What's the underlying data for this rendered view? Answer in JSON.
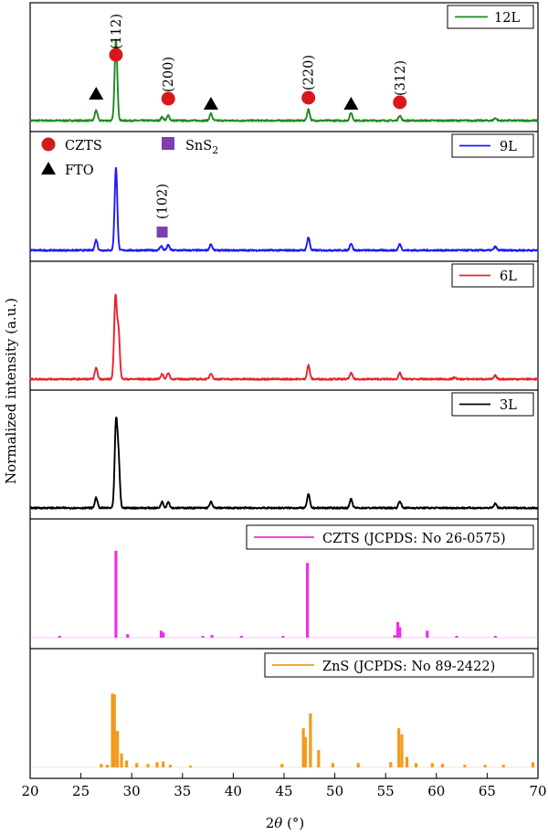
{
  "chart_data": {
    "type": "line",
    "xlabel": "2θ (°)",
    "ylabel": "Normalized intensity (a.u.)",
    "xlim": [
      20,
      70
    ],
    "xticks": [
      20,
      25,
      30,
      35,
      40,
      45,
      50,
      55,
      60,
      65,
      70
    ],
    "marker_legend": [
      {
        "label": "CZTS",
        "marker": "circle",
        "color": "#d7191c"
      },
      {
        "label": "FTO",
        "marker": "triangle",
        "color": "#000000"
      },
      {
        "label": "SnS2",
        "marker": "square",
        "color": "#7b3fb0"
      }
    ],
    "panels": [
      {
        "name": "12L",
        "type": "line",
        "color": "#1f8a1f",
        "baseline": 0.08,
        "peaks": [
          [
            26.5,
            0.12
          ],
          [
            28.45,
            0.95
          ],
          [
            33.0,
            0.04
          ],
          [
            33.6,
            0.06
          ],
          [
            37.8,
            0.08
          ],
          [
            47.4,
            0.13
          ],
          [
            51.6,
            0.09
          ],
          [
            56.4,
            0.06
          ],
          [
            65.8,
            0.03
          ]
        ],
        "annotations": [
          {
            "x": 28.45,
            "label": "(112)",
            "marker": "circle"
          },
          {
            "x": 33.6,
            "label": "(200)",
            "marker": "circle"
          },
          {
            "x": 47.4,
            "label": "(220)",
            "marker": "circle"
          },
          {
            "x": 56.4,
            "label": "(312)",
            "marker": "circle"
          },
          {
            "x": 26.5,
            "label": "",
            "marker": "triangle"
          },
          {
            "x": 37.8,
            "label": "",
            "marker": "triangle"
          },
          {
            "x": 51.6,
            "label": "",
            "marker": "triangle"
          }
        ]
      },
      {
        "name": "9L",
        "type": "line",
        "color": "#1a1aff",
        "baseline": 0.08,
        "peaks": [
          [
            26.5,
            0.12
          ],
          [
            28.45,
            0.95
          ],
          [
            32.9,
            0.05
          ],
          [
            33.6,
            0.06
          ],
          [
            37.8,
            0.07
          ],
          [
            47.4,
            0.15
          ],
          [
            51.6,
            0.08
          ],
          [
            56.4,
            0.07
          ],
          [
            65.8,
            0.04
          ]
        ],
        "annotations": [
          {
            "x": 33.0,
            "label": "(102)",
            "marker": "square"
          }
        ]
      },
      {
        "name": "6L",
        "type": "line",
        "color": "#e8232a",
        "baseline": 0.08,
        "peaks": [
          [
            26.5,
            0.13
          ],
          [
            28.4,
            0.95
          ],
          [
            28.7,
            0.55
          ],
          [
            33.0,
            0.06
          ],
          [
            33.6,
            0.07
          ],
          [
            37.8,
            0.07
          ],
          [
            47.4,
            0.16
          ],
          [
            51.6,
            0.07
          ],
          [
            56.4,
            0.07
          ],
          [
            61.8,
            0.02
          ],
          [
            65.8,
            0.04
          ]
        ],
        "annotations": []
      },
      {
        "name": "3L",
        "type": "line",
        "color": "#000000",
        "baseline": 0.08,
        "peaks": [
          [
            26.5,
            0.12
          ],
          [
            28.45,
            0.95
          ],
          [
            28.7,
            0.55
          ],
          [
            33.0,
            0.07
          ],
          [
            33.6,
            0.07
          ],
          [
            37.8,
            0.07
          ],
          [
            47.4,
            0.16
          ],
          [
            51.6,
            0.1
          ],
          [
            56.4,
            0.08
          ],
          [
            65.8,
            0.05
          ]
        ],
        "annotations": []
      },
      {
        "name": "CZTS (JCPDS: No 26-0575)",
        "type": "stick",
        "color": "#ee2ee8",
        "sticks": [
          [
            22.9,
            0.02
          ],
          [
            28.45,
            1.0
          ],
          [
            29.6,
            0.04
          ],
          [
            32.9,
            0.08
          ],
          [
            33.1,
            0.06
          ],
          [
            37.0,
            0.02
          ],
          [
            37.9,
            0.03
          ],
          [
            40.8,
            0.02
          ],
          [
            44.9,
            0.02
          ],
          [
            47.3,
            0.86
          ],
          [
            55.9,
            0.03
          ],
          [
            56.2,
            0.18
          ],
          [
            56.4,
            0.12
          ],
          [
            59.1,
            0.08
          ],
          [
            62.0,
            0.02
          ],
          [
            65.8,
            0.02
          ]
        ]
      },
      {
        "name": "ZnS (JCPDS: No 89-2422)",
        "type": "stick",
        "color": "#f39a1e",
        "sticks": [
          [
            27.0,
            0.04
          ],
          [
            27.6,
            0.03
          ],
          [
            28.1,
            0.85
          ],
          [
            28.3,
            0.84
          ],
          [
            28.6,
            0.42
          ],
          [
            29.0,
            0.16
          ],
          [
            29.5,
            0.08
          ],
          [
            30.5,
            0.05
          ],
          [
            31.6,
            0.04
          ],
          [
            32.5,
            0.06
          ],
          [
            33.1,
            0.07
          ],
          [
            33.8,
            0.03
          ],
          [
            35.8,
            0.02
          ],
          [
            44.8,
            0.04
          ],
          [
            46.9,
            0.45
          ],
          [
            47.1,
            0.35
          ],
          [
            47.6,
            0.62
          ],
          [
            48.4,
            0.2
          ],
          [
            49.8,
            0.05
          ],
          [
            52.3,
            0.05
          ],
          [
            55.5,
            0.06
          ],
          [
            56.3,
            0.45
          ],
          [
            56.6,
            0.38
          ],
          [
            57.1,
            0.12
          ],
          [
            58.0,
            0.05
          ],
          [
            59.6,
            0.05
          ],
          [
            60.6,
            0.04
          ],
          [
            62.8,
            0.03
          ],
          [
            64.8,
            0.03
          ],
          [
            66.6,
            0.03
          ],
          [
            69.5,
            0.06
          ]
        ]
      }
    ]
  },
  "legend_labels": {
    "p0": "12L",
    "p1": "9L",
    "p2": "6L",
    "p3": "3L",
    "p4": "CZTS (JCPDS: No 26-0575)",
    "p5": "ZnS (JCPDS: No 89-2422)"
  },
  "marker_legend_text": {
    "czts": "CZTS",
    "fto": "FTO",
    "sns2_main": "SnS",
    "sns2_sub": "2"
  },
  "axis": {
    "xlabel_theta": "θ",
    "xlabel_prefix": "2",
    "xlabel_suffix": " (°)",
    "ylabel": "Normalized intensity (a.u.)"
  }
}
